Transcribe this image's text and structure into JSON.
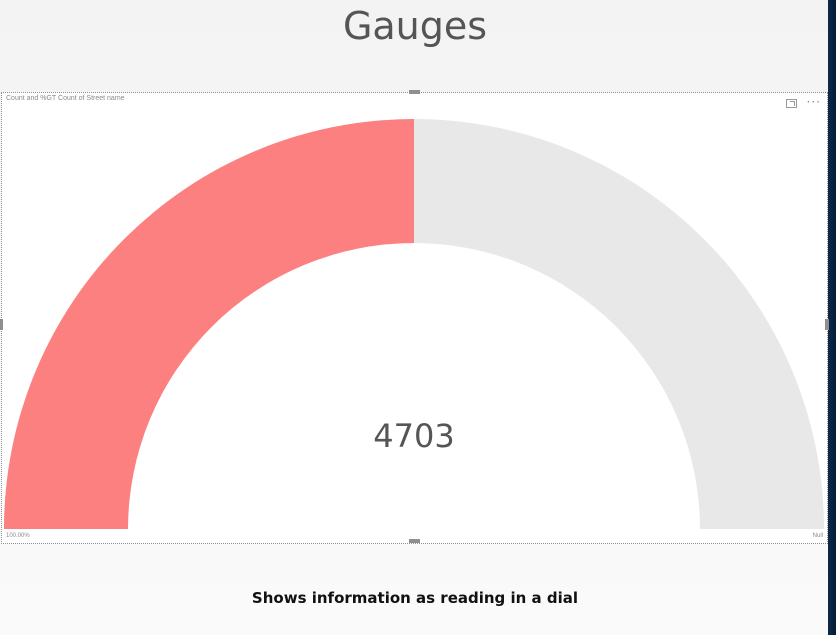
{
  "slide": {
    "title": "Gauges",
    "caption": "Shows information as reading in a dial"
  },
  "visual": {
    "header_title": "Count and %GT Count of Street name",
    "more_options": "···"
  },
  "chart_data": {
    "type": "gauge",
    "value_label": "4703",
    "fill_fraction": 0.5,
    "min_label": "100.00%",
    "max_label": "Null",
    "colors": {
      "fill": "#fd8080",
      "track": "#e8e8e8"
    }
  },
  "colors": {
    "accent": "#fd8080",
    "track": "#e8e8e8",
    "edge": "#0c2a4a"
  }
}
